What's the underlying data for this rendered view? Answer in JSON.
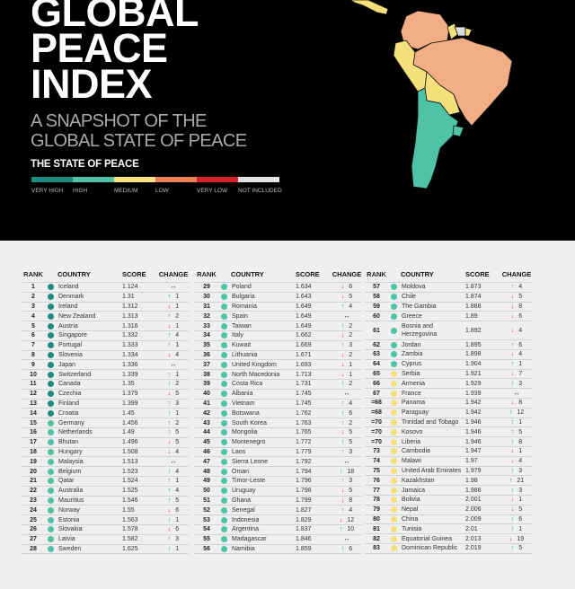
{
  "header": {
    "title_lines": [
      "GLOBAL",
      "PEACE",
      "INDEX"
    ],
    "subtitle_lines": [
      "A SNAPSHOT OF THE",
      "GLOBAL STATE OF PEACE"
    ],
    "state_heading": "THE STATE OF PEACE"
  },
  "legend": [
    {
      "label": "VERY HIGH",
      "color": "#1b8a80"
    },
    {
      "label": "HIGH",
      "color": "#4fc3a6"
    },
    {
      "label": "MEDIUM",
      "color": "#f6e07c"
    },
    {
      "label": "LOW",
      "color": "#f0805a"
    },
    {
      "label": "VERY LOW",
      "color": "#d8232a"
    },
    {
      "label": "NOT INCLUDED",
      "color": "#e4e4e4"
    }
  ],
  "table_headers": {
    "rank": "RANK",
    "country": "COUNTRY",
    "score": "SCORE",
    "change": "CHANGE"
  },
  "columns": [
    [
      [
        "1",
        "Iceland",
        "1.124",
        "same",
        "",
        "vh"
      ],
      [
        "2",
        "Denmark",
        "1.31",
        "up",
        "1",
        "vh"
      ],
      [
        "3",
        "Ireland",
        "1.312",
        "down",
        "1",
        "vh"
      ],
      [
        "4",
        "New Zealand",
        "1.313",
        "up",
        "2",
        "vh"
      ],
      [
        "5",
        "Austria",
        "1.316",
        "down",
        "1",
        "vh"
      ],
      [
        "6",
        "Singapore",
        "1.332",
        "up",
        "4",
        "vh"
      ],
      [
        "7",
        "Portugal",
        "1.333",
        "up",
        "1",
        "vh"
      ],
      [
        "8",
        "Slovenia",
        "1.334",
        "down",
        "4",
        "vh"
      ],
      [
        "9",
        "Japan",
        "1.336",
        "same",
        "",
        "vh"
      ],
      [
        "10",
        "Switzerland",
        "1.339",
        "up",
        "1",
        "vh"
      ],
      [
        "11",
        "Canada",
        "1.35",
        "up",
        "2",
        "vh"
      ],
      [
        "12",
        "Czechia",
        "1.379",
        "down",
        "5",
        "vh"
      ],
      [
        "13",
        "Finland",
        "1.399",
        "up",
        "3",
        "vh"
      ],
      [
        "14",
        "Croatia",
        "1.45",
        "up",
        "1",
        "vh"
      ],
      [
        "15",
        "Germany",
        "1.456",
        "up",
        "2",
        "h"
      ],
      [
        "16",
        "Netherlands",
        "1.49",
        "up",
        "5",
        "h"
      ],
      [
        "17",
        "Bhutan",
        "1.496",
        "down",
        "5",
        "h"
      ],
      [
        "18",
        "Hungary",
        "1.508",
        "down",
        "4",
        "h"
      ],
      [
        "19",
        "Malaysia",
        "1.513",
        "same",
        "",
        "h"
      ],
      [
        "20",
        "Belgium",
        "1.523",
        "up",
        "4",
        "h"
      ],
      [
        "21",
        "Qatar",
        "1.524",
        "up",
        "1",
        "h"
      ],
      [
        "22",
        "Australia",
        "1.525",
        "up",
        "4",
        "h"
      ],
      [
        "23",
        "Mauritius",
        "1.546",
        "up",
        "5",
        "h"
      ],
      [
        "24",
        "Norway",
        "1.55",
        "down",
        "6",
        "h"
      ],
      [
        "25",
        "Estonia",
        "1.563",
        "up",
        "1",
        "h"
      ],
      [
        "26",
        "Slovakia",
        "1.578",
        "down",
        "6",
        "h"
      ],
      [
        "27",
        "Latvia",
        "1.582",
        "up",
        "3",
        "h"
      ],
      [
        "28",
        "Sweden",
        "1.625",
        "up",
        "1",
        "h"
      ]
    ],
    [
      [
        "29",
        "Poland",
        "1.634",
        "down",
        "6",
        "h"
      ],
      [
        "30",
        "Bulgaria",
        "1.643",
        "down",
        "5",
        "h"
      ],
      [
        "31",
        "Romania",
        "1.649",
        "up",
        "4",
        "h"
      ],
      [
        "32",
        "Spain",
        "1.649",
        "same",
        "",
        "h"
      ],
      [
        "33",
        "Taiwan",
        "1.649",
        "up",
        "2",
        "h"
      ],
      [
        "34",
        "Italy",
        "1.662",
        "down",
        "2",
        "h"
      ],
      [
        "35",
        "Kuwait",
        "1.669",
        "up",
        "3",
        "h"
      ],
      [
        "36",
        "Lithuania",
        "1.671",
        "down",
        "2",
        "h"
      ],
      [
        "37",
        "United Kingdom",
        "1.693",
        "down",
        "1",
        "h"
      ],
      [
        "38",
        "North Macedonia",
        "1.713",
        "down",
        "1",
        "h"
      ],
      [
        "39",
        "Costa Rica",
        "1.731",
        "up",
        "2",
        "h"
      ],
      [
        "40",
        "Albania",
        "1.745",
        "same",
        "",
        "h"
      ],
      [
        "41",
        "Vietnam",
        "1.745",
        "up",
        "4",
        "h"
      ],
      [
        "42",
        "Botswana",
        "1.762",
        "up",
        "6",
        "h"
      ],
      [
        "43",
        "South Korea",
        "1.763",
        "up",
        "2",
        "h"
      ],
      [
        "44",
        "Mongolia",
        "1.765",
        "down",
        "5",
        "h"
      ],
      [
        "45",
        "Montenegro",
        "1.772",
        "up",
        "5",
        "h"
      ],
      [
        "46",
        "Laos",
        "1.779",
        "up",
        "3",
        "h"
      ],
      [
        "47",
        "Sierra Leone",
        "1.792",
        "same",
        "",
        "h"
      ],
      [
        "48",
        "Oman",
        "1.794",
        "up",
        "18",
        "h"
      ],
      [
        "49",
        "Timor-Leste",
        "1.796",
        "up",
        "3",
        "h"
      ],
      [
        "50",
        "Uruguay",
        "1.798",
        "down",
        "5",
        "h"
      ],
      [
        "51",
        "Ghana",
        "1.799",
        "down",
        "8",
        "h"
      ],
      [
        "52",
        "Senegal",
        "1.827",
        "up",
        "4",
        "h"
      ],
      [
        "53",
        "Indonesia",
        "1.829",
        "down",
        "12",
        "h"
      ],
      [
        "54",
        "Argentina",
        "1.837",
        "up",
        "10",
        "h"
      ],
      [
        "55",
        "Madagascar",
        "1.846",
        "same",
        "",
        "h"
      ],
      [
        "56",
        "Namibia",
        "1.859",
        "up",
        "6",
        "h"
      ]
    ],
    [
      [
        "57",
        "Moldova",
        "1.873",
        "up",
        "4",
        "h"
      ],
      [
        "58",
        "Chile",
        "1.874",
        "down",
        "5",
        "h"
      ],
      [
        "59",
        "The Gambia",
        "1.888",
        "down",
        "8",
        "h"
      ],
      [
        "60",
        "Greece",
        "1.89",
        "down",
        "6",
        "h"
      ],
      [
        "61",
        "Bosnia and Herzegovina",
        "1.892",
        "down",
        "4",
        "h"
      ],
      [
        "62",
        "Jordan",
        "1.895",
        "up",
        "6",
        "h"
      ],
      [
        "63",
        "Zambia",
        "1.898",
        "down",
        "4",
        "h"
      ],
      [
        "64",
        "Cyprus",
        "1.904",
        "up",
        "1",
        "h"
      ],
      [
        "65",
        "Serbia",
        "1.921",
        "down",
        "7",
        "m"
      ],
      [
        "66",
        "Armenia",
        "1.929",
        "up",
        "3",
        "m"
      ],
      [
        "67",
        "France",
        "1.939",
        "same",
        "",
        "m"
      ],
      [
        "=68",
        "Panama",
        "1.942",
        "down",
        "8",
        "m"
      ],
      [
        "=68",
        "Paraguay",
        "1.942",
        "up",
        "12",
        "m"
      ],
      [
        "=70",
        "Trinidad and Tobago",
        "1.946",
        "up",
        "1",
        "m"
      ],
      [
        "=70",
        "Kosovo",
        "1.946",
        "up",
        "5",
        "m"
      ],
      [
        "=70",
        "Liberia",
        "1.946",
        "up",
        "8",
        "m"
      ],
      [
        "73",
        "Cambodia",
        "1.947",
        "down",
        "1",
        "m"
      ],
      [
        "74",
        "Malawi",
        "1.97",
        "down",
        "4",
        "m"
      ],
      [
        "75",
        "United Arab Emirates",
        "1.979",
        "up",
        "3",
        "m"
      ],
      [
        "76",
        "Kazakhstan",
        "1.98",
        "up",
        "21",
        "m"
      ],
      [
        "77",
        "Jamaica",
        "1.986",
        "up",
        "3",
        "m"
      ],
      [
        "78",
        "Bolivia",
        "2.001",
        "down",
        "1",
        "m"
      ],
      [
        "79",
        "Nepal",
        "2.006",
        "down",
        "5",
        "m"
      ],
      [
        "80",
        "China",
        "2.009",
        "up",
        "6",
        "m"
      ],
      [
        "81",
        "Tunisia",
        "2.01",
        "up",
        "1",
        "m"
      ],
      [
        "82",
        "Equatorial Guinea",
        "2.013",
        "down",
        "19",
        "m"
      ],
      [
        "83",
        "Dominican Republic",
        "2.019",
        "up",
        "5",
        "m"
      ]
    ]
  ],
  "tier_colors": {
    "vh": "#1b8a80",
    "h": "#4fc3a6",
    "m": "#f6e07c"
  },
  "change_glyphs": {
    "up": "↑",
    "down": "↓",
    "same": "↔"
  }
}
